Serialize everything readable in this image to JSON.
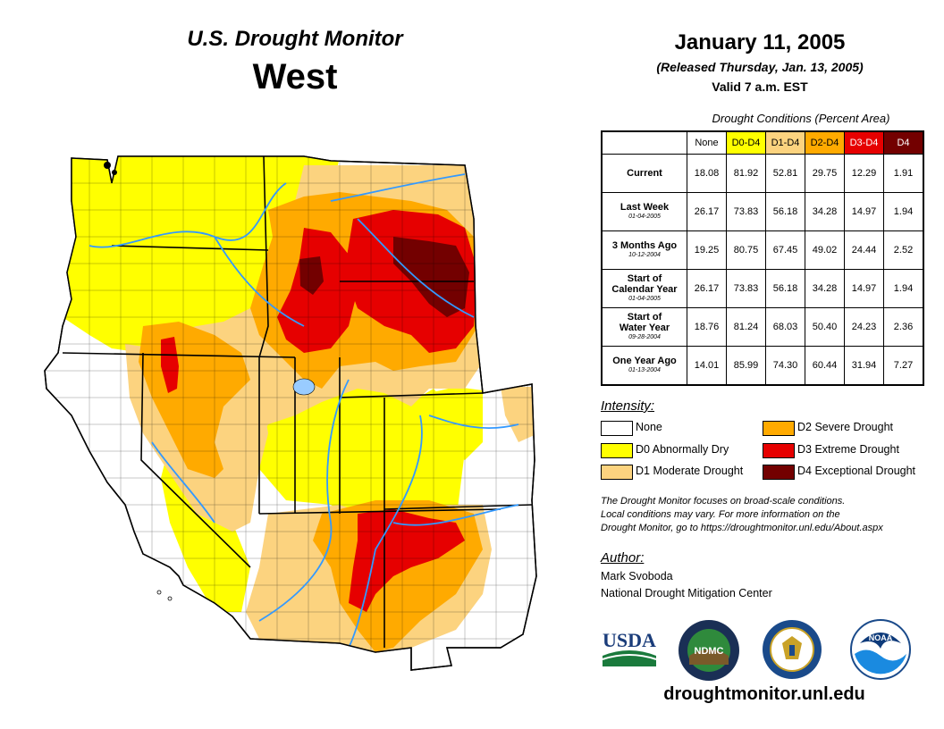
{
  "header": {
    "title": "U.S. Drought Monitor",
    "region": "West",
    "date": "January 11, 2005",
    "released": "(Released Thursday, Jan. 13, 2005)",
    "valid": "Valid 7 a.m. EST"
  },
  "table": {
    "caption": "Drought Conditions (Percent Area)",
    "columns": [
      "None",
      "D0-D4",
      "D1-D4",
      "D2-D4",
      "D3-D4",
      "D4"
    ],
    "rows": [
      {
        "label": "Current",
        "sub": "",
        "values": [
          "18.08",
          "81.92",
          "52.81",
          "29.75",
          "12.29",
          "1.91"
        ]
      },
      {
        "label": "Last Week",
        "sub": "01-04-2005",
        "values": [
          "26.17",
          "73.83",
          "56.18",
          "34.28",
          "14.97",
          "1.94"
        ]
      },
      {
        "label": "3 Months Ago",
        "sub": "10-12-2004",
        "values": [
          "19.25",
          "80.75",
          "67.45",
          "49.02",
          "24.44",
          "2.52"
        ]
      },
      {
        "label": "Start of Calendar Year",
        "sub": "01-04-2005",
        "values": [
          "26.17",
          "73.83",
          "56.18",
          "34.28",
          "14.97",
          "1.94"
        ]
      },
      {
        "label": "Start of Water Year",
        "sub": "09-28-2004",
        "values": [
          "18.76",
          "81.24",
          "68.03",
          "50.40",
          "24.23",
          "2.36"
        ]
      },
      {
        "label": "One Year Ago",
        "sub": "01-13-2004",
        "values": [
          "14.01",
          "85.99",
          "74.30",
          "60.44",
          "31.94",
          "7.27"
        ]
      }
    ]
  },
  "intensity": {
    "title": "Intensity:",
    "items": [
      {
        "label": "None",
        "color": "#ffffff"
      },
      {
        "label": "D0 Abnormally Dry",
        "color": "#ffff00"
      },
      {
        "label": "D1 Moderate Drought",
        "color": "#fcd37f"
      },
      {
        "label": "D2 Severe Drought",
        "color": "#ffaa00"
      },
      {
        "label": "D3 Extreme Drought",
        "color": "#e60000"
      },
      {
        "label": "D4 Exceptional Drought",
        "color": "#730000"
      }
    ]
  },
  "note": {
    "line1": "The Drought Monitor focuses on broad-scale conditions.",
    "line2": "Local conditions may vary. For more information on the",
    "line3": "Drought Monitor, go to https://droughtmonitor.unl.edu/About.aspx"
  },
  "author": {
    "title": "Author:",
    "name": "Mark Svoboda",
    "org": "National Drought Mitigation Center"
  },
  "logos": {
    "usda": "USDA",
    "ndmc": "NDMC",
    "noaa": "NOAA"
  },
  "website": "droughtmonitor.unl.edu",
  "colors": {
    "none": "#ffffff",
    "d0": "#ffff00",
    "d1": "#fcd37f",
    "d2": "#ffaa00",
    "d3": "#e60000",
    "d4": "#730000",
    "river": "#3399ff",
    "lake": "#99ccff"
  }
}
